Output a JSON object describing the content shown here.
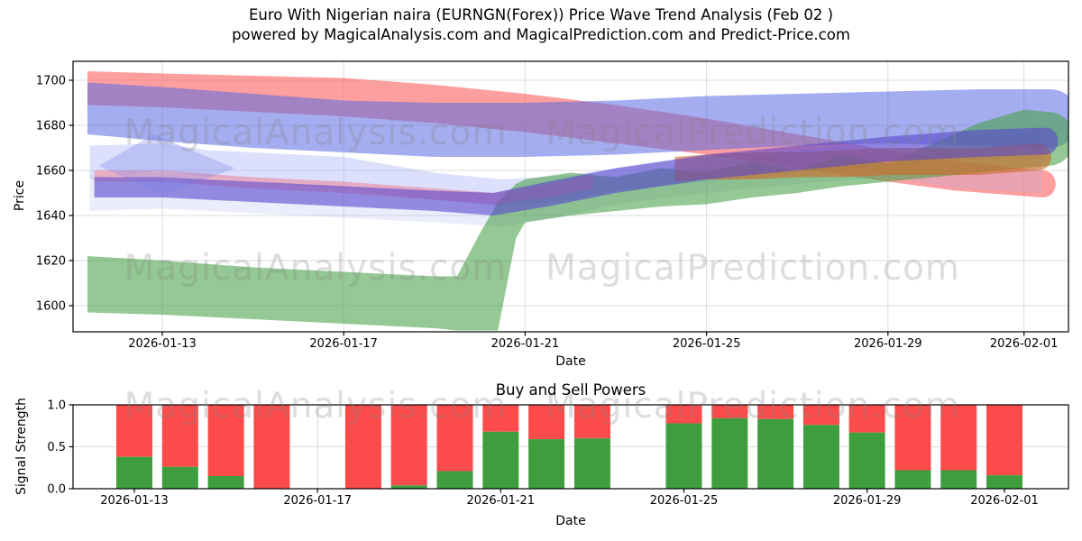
{
  "title": {
    "line1": "Euro With Nigerian naira (EURNGN(Forex)) Price Wave Trend Analysis (Feb 02 )",
    "line2": "powered by MagicalAnalysis.com and MagicalPrediction.com and Predict-Price.com"
  },
  "watermarks": {
    "texts": [
      "MagicalAnalysis.com",
      "MagicalPrediction.com"
    ],
    "color": "#808080",
    "opacity": 0.27
  },
  "chart_data": [
    {
      "type": "area",
      "title": "",
      "xlabel": "Date",
      "ylabel": "Price",
      "x_start_date": "2026-01-11",
      "xtick_labels": [
        "2026-01-13",
        "2026-01-17",
        "2026-01-21",
        "2026-01-25",
        "2026-01-29",
        "2026-02-01"
      ],
      "yticks": [
        1600,
        1620,
        1640,
        1660,
        1680,
        1700
      ],
      "ylim": [
        1588,
        1708
      ],
      "grid": true,
      "bands": [
        {
          "name": "red-upper-band",
          "color": "#fc6464",
          "opacity": 0.62,
          "round_end": true,
          "points": [
            [
              0.35,
              1689,
              1704
            ],
            [
              2,
              1688,
              1703
            ],
            [
              4,
              1686,
              1702
            ],
            [
              6,
              1684,
              1701
            ],
            [
              8,
              1681,
              1698
            ],
            [
              10,
              1677,
              1694
            ],
            [
              12,
              1672,
              1689
            ],
            [
              14,
              1667,
              1683
            ],
            [
              16,
              1661,
              1676
            ],
            [
              18,
              1655,
              1669
            ],
            [
              19.5,
              1651,
              1664
            ],
            [
              21.4,
              1648,
              1660
            ]
          ]
        },
        {
          "name": "blue-upper-band",
          "color": "#5a6ae2",
          "opacity": 0.55,
          "round_end": true,
          "points": [
            [
              0.35,
              1676,
              1699
            ],
            [
              2,
              1673,
              1697
            ],
            [
              4,
              1670,
              1694
            ],
            [
              6,
              1668,
              1691
            ],
            [
              8,
              1666,
              1690
            ],
            [
              10,
              1666,
              1690
            ],
            [
              12,
              1667,
              1691
            ],
            [
              14,
              1669,
              1693
            ],
            [
              16,
              1671,
              1694
            ],
            [
              18,
              1672,
              1695
            ],
            [
              20,
              1671,
              1696
            ],
            [
              21.55,
              1670,
              1696
            ]
          ]
        },
        {
          "name": "light-blue-mid-band",
          "color": "#96a0f5",
          "opacity": 0.32,
          "round_end": false,
          "points": [
            [
              0.4,
              1656,
              1671
            ],
            [
              2,
              1660,
              1672
            ],
            [
              3,
              1657,
              1669
            ],
            [
              4,
              1655,
              1668
            ],
            [
              6,
              1652,
              1666
            ],
            [
              8,
              1647,
              1659
            ],
            [
              9.5,
              1644,
              1656
            ],
            [
              11,
              1647,
              1658
            ],
            [
              12,
              1651,
              1661
            ],
            [
              14,
              1655,
              1666
            ],
            [
              16,
              1659,
              1669
            ],
            [
              18,
              1662,
              1673
            ],
            [
              20,
              1665,
              1677
            ],
            [
              21.4,
              1666,
              1678
            ]
          ]
        },
        {
          "name": "lavender-wide-band",
          "color": "#a5acf5",
          "opacity": 0.22,
          "round_end": false,
          "points": [
            [
              0.4,
              1642,
              1658
            ],
            [
              2,
              1643,
              1659
            ],
            [
              4,
              1641,
              1657
            ],
            [
              6,
              1639,
              1655
            ],
            [
              8,
              1637,
              1652
            ],
            [
              9.5,
              1635,
              1650
            ],
            [
              11,
              1640,
              1654
            ],
            [
              12,
              1645,
              1658
            ],
            [
              14,
              1650,
              1663
            ],
            [
              16,
              1654,
              1666
            ],
            [
              18,
              1657,
              1669
            ],
            [
              19.5,
              1652,
              1668
            ],
            [
              21.4,
              1650,
              1666
            ]
          ]
        },
        {
          "name": "green-band",
          "color": "#46a046",
          "opacity": 0.58,
          "round_end": true,
          "points": [
            [
              0.35,
              1597,
              1622
            ],
            [
              2,
              1596,
              1620
            ],
            [
              4,
              1594,
              1617
            ],
            [
              6,
              1592,
              1615
            ],
            [
              8,
              1590,
              1613
            ],
            [
              8.5,
              1589,
              1613
            ],
            [
              9,
              1589,
              1632
            ],
            [
              9.4,
              1589,
              1646
            ],
            [
              9.8,
              1630,
              1654
            ],
            [
              10,
              1637,
              1656
            ],
            [
              11,
              1640,
              1659
            ],
            [
              12,
              1642,
              1657
            ],
            [
              13,
              1644,
              1661
            ],
            [
              14,
              1645,
              1659
            ],
            [
              15,
              1648,
              1664
            ],
            [
              16,
              1650,
              1660
            ],
            [
              17,
              1653,
              1667
            ],
            [
              18,
              1655,
              1663
            ],
            [
              19,
              1657,
              1672
            ],
            [
              20,
              1659,
              1681
            ],
            [
              21,
              1661,
              1687
            ],
            [
              21.5,
              1662,
              1686
            ]
          ]
        },
        {
          "name": "orange-band",
          "color": "#d06a28",
          "opacity": 0.62,
          "round_end": true,
          "points": [
            [
              13.3,
              1655,
              1666
            ],
            [
              14,
              1656,
              1667
            ],
            [
              15,
              1656,
              1668
            ],
            [
              16,
              1657,
              1668
            ],
            [
              17,
              1657,
              1669
            ],
            [
              18,
              1658,
              1670
            ],
            [
              19,
              1658,
              1670
            ],
            [
              20,
              1658,
              1670
            ],
            [
              21.3,
              1660,
              1672
            ]
          ]
        },
        {
          "name": "pink-thin-band",
          "color": "#fa7882",
          "opacity": 0.45,
          "round_end": false,
          "points": [
            [
              0.5,
              1655,
              1660
            ],
            [
              2,
              1655,
              1660
            ],
            [
              4,
              1652,
              1657
            ],
            [
              6,
              1650,
              1655
            ],
            [
              8,
              1647,
              1652
            ],
            [
              9.3,
              1645,
              1650
            ],
            [
              10.5,
              1648,
              1654
            ],
            [
              11.5,
              1652,
              1658
            ]
          ]
        },
        {
          "name": "indigo-band",
          "color": "#5846cd",
          "opacity": 0.6,
          "round_end": true,
          "points": [
            [
              0.5,
              1648,
              1657
            ],
            [
              2,
              1648,
              1657
            ],
            [
              4,
              1646,
              1655
            ],
            [
              6,
              1644,
              1653
            ],
            [
              8,
              1642,
              1651
            ],
            [
              9.3,
              1640,
              1650
            ],
            [
              10.5,
              1644,
              1655
            ],
            [
              12,
              1650,
              1661
            ],
            [
              14,
              1656,
              1667
            ],
            [
              16,
              1660,
              1671
            ],
            [
              18,
              1664,
              1675
            ],
            [
              20,
              1666,
              1678
            ],
            [
              21.45,
              1667,
              1679
            ]
          ]
        }
      ],
      "overlay_polygons": [
        {
          "name": "blue-wave-diamond",
          "color": "#737ee8",
          "opacity": 0.3,
          "points": [
            [
              0.6,
              1662
            ],
            [
              1.8,
              1676
            ],
            [
              3.6,
              1661
            ],
            [
              2,
              1649
            ]
          ]
        }
      ]
    },
    {
      "type": "bar",
      "title": "Buy and Sell Powers",
      "xlabel": "Date",
      "ylabel": "Signal Strength",
      "stacked": true,
      "x_start_date": "2026-01-11",
      "xtick_labels": [
        "2026-01-13",
        "2026-01-17",
        "2026-01-21",
        "2026-01-25",
        "2026-01-29",
        "2026-02-01"
      ],
      "yticks": [
        0,
        0.5,
        1
      ],
      "ylim": [
        0,
        1
      ],
      "grid": true,
      "categories": [
        "2026-01-13",
        "2026-01-14",
        "2026-01-15",
        "2026-01-16",
        "2026-01-18",
        "2026-01-19",
        "2026-01-20",
        "2026-01-21",
        "2026-01-22",
        "2026-01-23",
        "2026-01-25",
        "2026-01-26",
        "2026-01-27",
        "2026-01-28",
        "2026-01-29",
        "2026-01-30",
        "2026-01-31",
        "2026-02-01"
      ],
      "series": [
        {
          "name": "Buy Power",
          "color": "#3e9e3e",
          "values": [
            0.38,
            0.26,
            0.15,
            0.0,
            0.0,
            0.04,
            0.21,
            0.68,
            0.59,
            0.6,
            0.78,
            0.84,
            0.83,
            0.76,
            0.67,
            0.22,
            0.22,
            0.16
          ]
        },
        {
          "name": "Sell Power",
          "color": "#fb4b4b",
          "values": [
            0.62,
            0.74,
            0.85,
            1.0,
            1.0,
            0.96,
            0.79,
            0.32,
            0.41,
            0.4,
            0.22,
            0.16,
            0.17,
            0.24,
            0.33,
            0.78,
            0.78,
            0.84
          ]
        }
      ]
    }
  ],
  "style": {
    "grid_color": "#dcdcdc",
    "spine_color": "#000000",
    "tick_label_color": "#000000"
  }
}
